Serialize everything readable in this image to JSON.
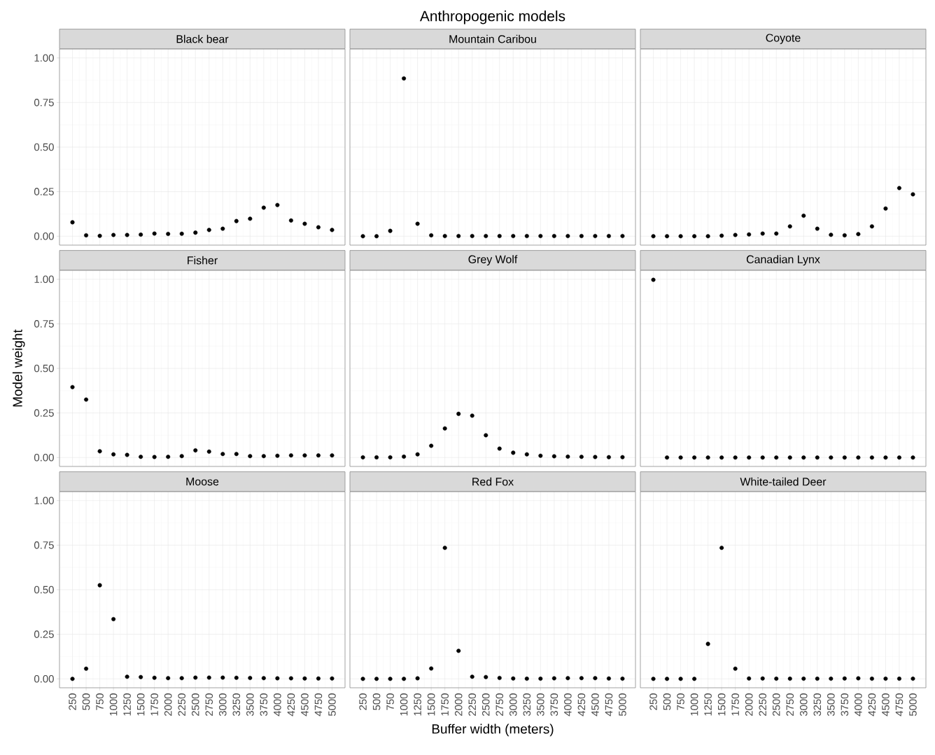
{
  "chart_data": [
    {
      "type": "scatter",
      "title": "Black bear",
      "color": "#000000",
      "marker": "circle",
      "grid": true,
      "tick_labels": "y",
      "xlim": [
        12.5,
        5237.5
      ],
      "ylim": [
        -0.05,
        1.05
      ],
      "xticks": [
        250,
        500,
        750,
        1000,
        1250,
        1500,
        1750,
        2000,
        2250,
        2500,
        2750,
        3000,
        3250,
        3500,
        3750,
        4000,
        4250,
        4500,
        4750,
        5000
      ],
      "yticks": [
        {
          "value": 0,
          "label": "0.00"
        },
        {
          "value": 0.25,
          "label": "0.25"
        },
        {
          "value": 0.5,
          "label": "0.50"
        },
        {
          "value": 0.75,
          "label": "0.75"
        },
        {
          "value": 1,
          "label": "1.00"
        }
      ],
      "x": [
        250,
        500,
        750,
        1000,
        1250,
        1500,
        1750,
        2000,
        2250,
        2500,
        2750,
        3000,
        3250,
        3500,
        3750,
        4000,
        4250,
        4500,
        4750,
        5000
      ],
      "values": [
        0.078,
        0.005,
        0.002,
        0.007,
        0.007,
        0.009,
        0.015,
        0.013,
        0.014,
        0.02,
        0.035,
        0.042,
        0.085,
        0.098,
        0.16,
        0.175,
        0.088,
        0.07,
        0.05,
        0.035
      ]
    },
    {
      "type": "scatter",
      "title": "Mountain Caribou",
      "annotations": [
        "Anthropogenic models"
      ],
      "color": "#000000",
      "marker": "circle",
      "grid": true,
      "tick_labels": false,
      "xlim": [
        12.5,
        5237.5
      ],
      "ylim": [
        -0.05,
        1.05
      ],
      "xticks": [
        250,
        500,
        750,
        1000,
        1250,
        1500,
        1750,
        2000,
        2250,
        2500,
        2750,
        3000,
        3250,
        3500,
        3750,
        4000,
        4250,
        4500,
        4750,
        5000
      ],
      "yticks": [
        {
          "value": 0,
          "label": null
        },
        {
          "value": 0.25,
          "label": null
        },
        {
          "value": 0.5,
          "label": null
        },
        {
          "value": 0.75,
          "label": null
        },
        {
          "value": 1,
          "label": null
        }
      ],
      "x": [
        250,
        500,
        750,
        1000,
        1250,
        1500,
        1750,
        2000,
        2250,
        2500,
        2750,
        3000,
        3250,
        3500,
        3750,
        4000,
        4250,
        4500,
        4750,
        5000
      ],
      "values": [
        0.0,
        0.0,
        0.03,
        0.885,
        0.07,
        0.005,
        0.001,
        0.001,
        0.001,
        0.001,
        0.001,
        0.001,
        0.001,
        0.001,
        0.001,
        0.001,
        0.001,
        0.001,
        0.001,
        0.001
      ]
    },
    {
      "type": "scatter",
      "title": "Coyote",
      "color": "#000000",
      "marker": "circle",
      "grid": true,
      "tick_labels": false,
      "xlim": [
        12.5,
        5237.5
      ],
      "ylim": [
        -0.05,
        1.05
      ],
      "xticks": [
        250,
        500,
        750,
        1000,
        1250,
        1500,
        1750,
        2000,
        2250,
        2500,
        2750,
        3000,
        3250,
        3500,
        3750,
        4000,
        4250,
        4500,
        4750,
        5000
      ],
      "yticks": [
        {
          "value": 0,
          "label": null
        },
        {
          "value": 0.25,
          "label": null
        },
        {
          "value": 0.5,
          "label": null
        },
        {
          "value": 0.75,
          "label": null
        },
        {
          "value": 1,
          "label": null
        }
      ],
      "x": [
        250,
        500,
        750,
        1000,
        1250,
        1500,
        1750,
        2000,
        2250,
        2500,
        2750,
        3000,
        3250,
        3500,
        3750,
        4000,
        4250,
        4500,
        4750,
        5000
      ],
      "values": [
        0.0,
        0.0,
        0.0,
        0.0,
        0.0,
        0.003,
        0.007,
        0.01,
        0.015,
        0.015,
        0.055,
        0.115,
        0.042,
        0.008,
        0.005,
        0.012,
        0.055,
        0.155,
        0.27,
        0.235
      ]
    },
    {
      "type": "scatter",
      "title": "Fisher",
      "ylabel": "Model weight",
      "color": "#000000",
      "marker": "circle",
      "grid": true,
      "tick_labels": "y",
      "xlim": [
        12.5,
        5237.5
      ],
      "ylim": [
        -0.05,
        1.05
      ],
      "xticks": [
        250,
        500,
        750,
        1000,
        1250,
        1500,
        1750,
        2000,
        2250,
        2500,
        2750,
        3000,
        3250,
        3500,
        3750,
        4000,
        4250,
        4500,
        4750,
        5000
      ],
      "yticks": [
        {
          "value": 0,
          "label": "0.00"
        },
        {
          "value": 0.25,
          "label": "0.25"
        },
        {
          "value": 0.5,
          "label": "0.50"
        },
        {
          "value": 0.75,
          "label": "0.75"
        },
        {
          "value": 1,
          "label": "1.00"
        }
      ],
      "x": [
        250,
        500,
        750,
        1000,
        1250,
        1500,
        1750,
        2000,
        2250,
        2500,
        2750,
        3000,
        3250,
        3500,
        3750,
        4000,
        4250,
        4500,
        4750,
        5000
      ],
      "values": [
        0.395,
        0.325,
        0.035,
        0.018,
        0.015,
        0.004,
        0.003,
        0.004,
        0.008,
        0.04,
        0.033,
        0.02,
        0.02,
        0.008,
        0.008,
        0.01,
        0.012,
        0.012,
        0.012,
        0.012
      ]
    },
    {
      "type": "scatter",
      "title": "Grey Wolf",
      "color": "#000000",
      "marker": "circle",
      "grid": true,
      "tick_labels": false,
      "xlim": [
        12.5,
        5237.5
      ],
      "ylim": [
        -0.05,
        1.05
      ],
      "xticks": [
        250,
        500,
        750,
        1000,
        1250,
        1500,
        1750,
        2000,
        2250,
        2500,
        2750,
        3000,
        3250,
        3500,
        3750,
        4000,
        4250,
        4500,
        4750,
        5000
      ],
      "yticks": [
        {
          "value": 0,
          "label": null
        },
        {
          "value": 0.25,
          "label": null
        },
        {
          "value": 0.5,
          "label": null
        },
        {
          "value": 0.75,
          "label": null
        },
        {
          "value": 1,
          "label": null
        }
      ],
      "x": [
        250,
        500,
        750,
        1000,
        1250,
        1500,
        1750,
        2000,
        2250,
        2500,
        2750,
        3000,
        3250,
        3500,
        3750,
        4000,
        4250,
        4500,
        4750,
        5000
      ],
      "values": [
        0.001,
        0.001,
        0.001,
        0.005,
        0.018,
        0.066,
        0.163,
        0.245,
        0.235,
        0.125,
        0.05,
        0.027,
        0.018,
        0.01,
        0.007,
        0.005,
        0.004,
        0.003,
        0.002,
        0.002
      ]
    },
    {
      "type": "scatter",
      "title": "Canadian Lynx",
      "color": "#000000",
      "marker": "circle",
      "grid": true,
      "tick_labels": false,
      "xlim": [
        12.5,
        5237.5
      ],
      "ylim": [
        -0.05,
        1.05
      ],
      "xticks": [
        250,
        500,
        750,
        1000,
        1250,
        1500,
        1750,
        2000,
        2250,
        2500,
        2750,
        3000,
        3250,
        3500,
        3750,
        4000,
        4250,
        4500,
        4750,
        5000
      ],
      "yticks": [
        {
          "value": 0,
          "label": null
        },
        {
          "value": 0.25,
          "label": null
        },
        {
          "value": 0.5,
          "label": null
        },
        {
          "value": 0.75,
          "label": null
        },
        {
          "value": 1,
          "label": null
        }
      ],
      "x": [
        250,
        500,
        750,
        1000,
        1250,
        1500,
        1750,
        2000,
        2250,
        2500,
        2750,
        3000,
        3250,
        3500,
        3750,
        4000,
        4250,
        4500,
        4750,
        5000
      ],
      "values": [
        0.997,
        0.0,
        0.0,
        0.0,
        0.0,
        0.0,
        0.0,
        0.0,
        0.0,
        0.0,
        0.0,
        0.0,
        0.0,
        0.0,
        0.0,
        0.0,
        0.0,
        0.0,
        0.0,
        0.0
      ]
    },
    {
      "type": "scatter",
      "title": "Moose",
      "color": "#000000",
      "marker": "circle",
      "grid": true,
      "xlim": [
        12.5,
        5237.5
      ],
      "ylim": [
        -0.05,
        1.05
      ],
      "xticks": [
        250,
        500,
        750,
        1000,
        1250,
        1500,
        1750,
        2000,
        2250,
        2500,
        2750,
        3000,
        3250,
        3500,
        3750,
        4000,
        4250,
        4500,
        4750,
        5000
      ],
      "yticks": [
        {
          "value": 0,
          "label": "0.00"
        },
        {
          "value": 0.25,
          "label": "0.25"
        },
        {
          "value": 0.5,
          "label": "0.50"
        },
        {
          "value": 0.75,
          "label": "0.75"
        },
        {
          "value": 1,
          "label": "1.00"
        }
      ],
      "x": [
        250,
        500,
        750,
        1000,
        1250,
        1500,
        1750,
        2000,
        2250,
        2500,
        2750,
        3000,
        3250,
        3500,
        3750,
        4000,
        4250,
        4500,
        4750,
        5000
      ],
      "values": [
        0.0,
        0.057,
        0.525,
        0.335,
        0.012,
        0.01,
        0.006,
        0.004,
        0.004,
        0.007,
        0.007,
        0.007,
        0.006,
        0.005,
        0.004,
        0.003,
        0.003,
        0.002,
        0.002,
        0.002
      ]
    },
    {
      "type": "scatter",
      "title": "Red Fox",
      "xlabel": "Buffer width (meters)",
      "color": "#000000",
      "marker": "circle",
      "grid": true,
      "tick_labels": "x",
      "xlim": [
        12.5,
        5237.5
      ],
      "ylim": [
        -0.05,
        1.05
      ],
      "xticks": [
        250,
        500,
        750,
        1000,
        1250,
        1500,
        1750,
        2000,
        2250,
        2500,
        2750,
        3000,
        3250,
        3500,
        3750,
        4000,
        4250,
        4500,
        4750,
        5000
      ],
      "yticks": [
        {
          "value": 0,
          "label": null
        },
        {
          "value": 0.25,
          "label": null
        },
        {
          "value": 0.5,
          "label": null
        },
        {
          "value": 0.75,
          "label": null
        },
        {
          "value": 1,
          "label": null
        }
      ],
      "x": [
        250,
        500,
        750,
        1000,
        1250,
        1500,
        1750,
        2000,
        2250,
        2500,
        2750,
        3000,
        3250,
        3500,
        3750,
        4000,
        4250,
        4500,
        4750,
        5000
      ],
      "values": [
        0.0,
        0.0,
        0.0,
        0.0,
        0.003,
        0.058,
        0.735,
        0.157,
        0.012,
        0.01,
        0.005,
        0.002,
        0.001,
        0.001,
        0.003,
        0.004,
        0.004,
        0.004,
        0.002,
        0.001
      ]
    },
    {
      "type": "scatter",
      "title": "White-tailed Deer",
      "color": "#000000",
      "marker": "circle",
      "grid": true,
      "tick_labels": "x",
      "xlim": [
        12.5,
        5237.5
      ],
      "ylim": [
        -0.05,
        1.05
      ],
      "xticks": [
        250,
        500,
        750,
        1000,
        1250,
        1500,
        1750,
        2000,
        2250,
        2500,
        2750,
        3000,
        3250,
        3500,
        3750,
        4000,
        4250,
        4500,
        4750,
        5000
      ],
      "yticks": [
        {
          "value": 0,
          "label": null
        },
        {
          "value": 0.25,
          "label": null
        },
        {
          "value": 0.5,
          "label": null
        },
        {
          "value": 0.75,
          "label": null
        },
        {
          "value": 1,
          "label": null
        }
      ],
      "x": [
        250,
        500,
        750,
        1000,
        1250,
        1500,
        1750,
        2000,
        2250,
        2500,
        2750,
        3000,
        3250,
        3500,
        3750,
        4000,
        4250,
        4500,
        4750,
        5000
      ],
      "values": [
        0.0,
        0.0,
        0.0,
        0.0,
        0.196,
        0.735,
        0.057,
        0.002,
        0.002,
        0.001,
        0.001,
        0.001,
        0.001,
        0.001,
        0.002,
        0.003,
        0.001,
        0.001,
        0.001,
        0.001
      ]
    }
  ]
}
